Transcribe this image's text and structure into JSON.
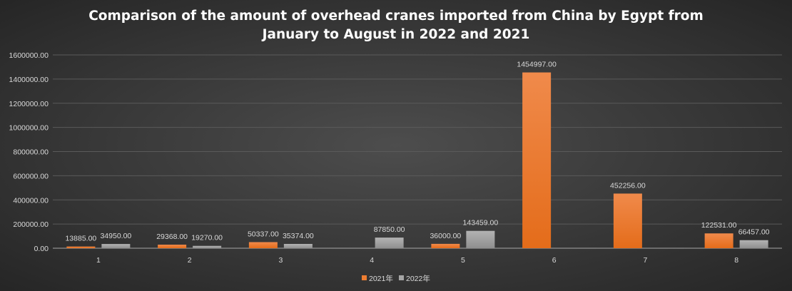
{
  "chart_data": {
    "type": "bar",
    "title_lines": [
      "Comparison of the amount of overhead cranes imported from China by Egypt from",
      "January to August in 2022 and 2021"
    ],
    "categories": [
      "1",
      "2",
      "3",
      "4",
      "5",
      "6",
      "7",
      "8"
    ],
    "series": [
      {
        "name": "2021年",
        "color": "#ed7d31",
        "values": [
          13885.0,
          29368.0,
          50337.0,
          null,
          36000.0,
          1454997.0,
          452256.0,
          122531.0
        ],
        "labels": [
          "13885.00",
          "29368.00",
          "50337.00",
          "",
          "36000.00",
          "1454997.00",
          "452256.00",
          "122531.00"
        ]
      },
      {
        "name": "2022年",
        "color": "#a5a5a5",
        "values": [
          34950.0,
          19270.0,
          35374.0,
          87850.0,
          143459.0,
          null,
          null,
          66457.0
        ],
        "labels": [
          "34950.00",
          "19270.00",
          "35374.00",
          "87850.00",
          "143459.00",
          "",
          "",
          "66457.00"
        ]
      }
    ],
    "yticks": [
      "0.00",
      "200000.00",
      "400000.00",
      "600000.00",
      "800000.00",
      "1000000.00",
      "1200000.00",
      "1400000.00",
      "1600000.00"
    ],
    "ylim": [
      0,
      1600000
    ],
    "grid": true,
    "legend": "bottom",
    "xlabel": "",
    "ylabel": "",
    "background": "#404040"
  }
}
